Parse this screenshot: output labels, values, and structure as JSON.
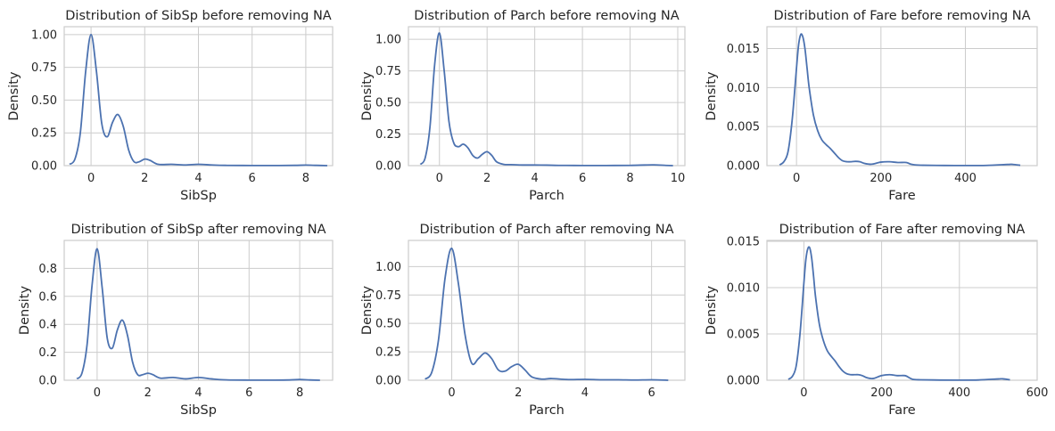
{
  "chart_data": [
    {
      "type": "line",
      "title": "Distribution of SibSp before removing NA",
      "xlabel": "SibSp",
      "ylabel": "Density",
      "xlim": [
        -1.0,
        9.0
      ],
      "ylim": [
        0,
        1.06
      ],
      "xticks": [
        0,
        2,
        4,
        6,
        8
      ],
      "xtick_labels": [
        "0",
        "2",
        "4",
        "6",
        "8"
      ],
      "yticks": [
        0,
        0.25,
        0.5,
        0.75,
        1.0
      ],
      "ytick_labels": [
        "0.00",
        "0.25",
        "0.50",
        "0.75",
        "1.00"
      ],
      "grid": true,
      "series": [
        {
          "color": "#4c72b0",
          "x": [
            -0.8,
            -0.6,
            -0.4,
            -0.2,
            0,
            0.2,
            0.4,
            0.6,
            0.8,
            1.0,
            1.2,
            1.4,
            1.6,
            1.8,
            2.0,
            2.2,
            2.5,
            3.0,
            3.5,
            4.0,
            4.5,
            5.0,
            6.0,
            7.0,
            7.6,
            8.0,
            8.4,
            8.8
          ],
          "y": [
            0.01,
            0.05,
            0.25,
            0.72,
            1.0,
            0.72,
            0.32,
            0.22,
            0.33,
            0.39,
            0.3,
            0.12,
            0.03,
            0.03,
            0.05,
            0.04,
            0.01,
            0.01,
            0.005,
            0.01,
            0.005,
            0.002,
            0.001,
            0.001,
            0.002,
            0.004,
            0.002,
            0.0
          ]
        }
      ]
    },
    {
      "type": "line",
      "title": "Distribution of Parch before removing NA",
      "xlabel": "Parch",
      "ylabel": "Density",
      "xlim": [
        -1.3,
        10.3
      ],
      "ylim": [
        0,
        1.1
      ],
      "xticks": [
        0,
        2,
        4,
        6,
        8,
        10
      ],
      "xtick_labels": [
        "0",
        "2",
        "4",
        "6",
        "8",
        "10"
      ],
      "yticks": [
        0,
        0.25,
        0.5,
        0.75,
        1.0
      ],
      "ytick_labels": [
        "0.00",
        "0.25",
        "0.50",
        "0.75",
        "1.00"
      ],
      "grid": true,
      "series": [
        {
          "color": "#4c72b0",
          "x": [
            -0.8,
            -0.6,
            -0.4,
            -0.2,
            0,
            0.2,
            0.4,
            0.6,
            0.8,
            1.0,
            1.2,
            1.4,
            1.6,
            1.8,
            2.0,
            2.2,
            2.4,
            2.7,
            3.0,
            3.5,
            4.0,
            4.5,
            5.0,
            6.0,
            7.0,
            8.0,
            8.6,
            9.0,
            9.5,
            9.8
          ],
          "y": [
            0.01,
            0.06,
            0.3,
            0.8,
            1.05,
            0.75,
            0.35,
            0.18,
            0.15,
            0.17,
            0.14,
            0.08,
            0.06,
            0.09,
            0.11,
            0.08,
            0.03,
            0.01,
            0.008,
            0.005,
            0.005,
            0.004,
            0.002,
            0.001,
            0.001,
            0.002,
            0.005,
            0.006,
            0.002,
            0.0
          ]
        }
      ]
    },
    {
      "type": "line",
      "title": "Distribution of Fare before removing NA",
      "xlabel": "Fare",
      "ylabel": "Density",
      "xlim": [
        -70,
        570
      ],
      "ylim": [
        0,
        0.0178
      ],
      "xticks": [
        0,
        200,
        400
      ],
      "xtick_labels": [
        "0",
        "200",
        "400"
      ],
      "yticks": [
        0,
        0.005,
        0.01,
        0.015
      ],
      "ytick_labels": [
        "0.000",
        "0.005",
        "0.010",
        "0.015"
      ],
      "grid": true,
      "series": [
        {
          "color": "#4c72b0",
          "x": [
            -40,
            -30,
            -20,
            -10,
            0,
            5,
            10,
            15,
            20,
            25,
            30,
            40,
            50,
            60,
            70,
            80,
            90,
            100,
            110,
            120,
            130,
            140,
            150,
            160,
            170,
            180,
            200,
            220,
            240,
            260,
            270,
            280,
            300,
            350,
            400,
            450,
            500,
            512,
            530
          ],
          "y": [
            0.0001,
            0.0005,
            0.0018,
            0.006,
            0.0125,
            0.0155,
            0.0168,
            0.0165,
            0.015,
            0.0125,
            0.01,
            0.0065,
            0.0045,
            0.0033,
            0.0027,
            0.0022,
            0.0016,
            0.001,
            0.0006,
            0.0005,
            0.0005,
            0.00055,
            0.0005,
            0.0003,
            0.0002,
            0.0002,
            0.00045,
            0.0005,
            0.0004,
            0.0004,
            0.0002,
            0.0001,
            5e-05,
            2e-05,
            1e-05,
            3e-05,
            0.00015,
            0.00016,
            5e-05
          ]
        }
      ]
    },
    {
      "type": "line",
      "title": "Distribution of SibSp after removing NA",
      "xlabel": "SibSp",
      "ylabel": "Density",
      "xlim": [
        -1.3,
        9.3
      ],
      "ylim": [
        0,
        1.0
      ],
      "xticks": [
        0,
        2,
        4,
        6,
        8
      ],
      "xtick_labels": [
        "0",
        "2",
        "4",
        "6",
        "8"
      ],
      "yticks": [
        0,
        0.2,
        0.4,
        0.6,
        0.8
      ],
      "ytick_labels": [
        "0.0",
        "0.2",
        "0.4",
        "0.6",
        "0.8"
      ],
      "grid": true,
      "series": [
        {
          "color": "#4c72b0",
          "x": [
            -0.8,
            -0.6,
            -0.4,
            -0.2,
            0,
            0.2,
            0.4,
            0.6,
            0.8,
            1.0,
            1.2,
            1.4,
            1.6,
            1.8,
            2.0,
            2.2,
            2.5,
            3.0,
            3.5,
            4.0,
            4.5,
            5.0,
            6.0,
            7.0,
            7.6,
            8.0,
            8.4,
            8.8
          ],
          "y": [
            0.01,
            0.05,
            0.25,
            0.68,
            0.94,
            0.66,
            0.3,
            0.23,
            0.36,
            0.43,
            0.32,
            0.13,
            0.04,
            0.04,
            0.05,
            0.04,
            0.015,
            0.02,
            0.01,
            0.02,
            0.01,
            0.003,
            0.001,
            0.001,
            0.002,
            0.005,
            0.002,
            0.0
          ]
        }
      ]
    },
    {
      "type": "line",
      "title": "Distribution of Parch after removing NA",
      "xlabel": "Parch",
      "ylabel": "Density",
      "xlim": [
        -1.3,
        7.0
      ],
      "ylim": [
        0,
        1.23
      ],
      "xticks": [
        0,
        2,
        4,
        6
      ],
      "xtick_labels": [
        "0",
        "2",
        "4",
        "6"
      ],
      "yticks": [
        0,
        0.25,
        0.5,
        0.75,
        1.0
      ],
      "ytick_labels": [
        "0.00",
        "0.25",
        "0.50",
        "0.75",
        "1.00"
      ],
      "grid": true,
      "series": [
        {
          "color": "#4c72b0",
          "x": [
            -0.8,
            -0.6,
            -0.4,
            -0.2,
            0,
            0.2,
            0.4,
            0.6,
            0.8,
            1.0,
            1.2,
            1.4,
            1.6,
            1.8,
            2.0,
            2.2,
            2.4,
            2.7,
            3.0,
            3.5,
            4.0,
            4.5,
            5.0,
            5.5,
            6.0,
            6.5
          ],
          "y": [
            0.01,
            0.07,
            0.35,
            0.9,
            1.16,
            0.85,
            0.4,
            0.15,
            0.19,
            0.24,
            0.19,
            0.09,
            0.08,
            0.12,
            0.14,
            0.09,
            0.03,
            0.01,
            0.015,
            0.006,
            0.008,
            0.004,
            0.004,
            0.002,
            0.004,
            0.0
          ]
        }
      ]
    },
    {
      "type": "line",
      "title": "Distribution of Fare after removing NA",
      "xlabel": "Fare",
      "ylabel": "Density",
      "xlim": [
        -95,
        600
      ],
      "ylim": [
        0,
        0.0151
      ],
      "xticks": [
        0,
        200,
        400,
        600
      ],
      "xtick_labels": [
        "0",
        "200",
        "400",
        "600"
      ],
      "yticks": [
        0,
        0.005,
        0.01,
        0.015
      ],
      "ytick_labels": [
        "0.000",
        "0.005",
        "0.010",
        "0.015"
      ],
      "grid": true,
      "series": [
        {
          "color": "#4c72b0",
          "x": [
            -40,
            -30,
            -20,
            -10,
            0,
            5,
            10,
            15,
            20,
            25,
            30,
            40,
            50,
            60,
            70,
            80,
            90,
            100,
            110,
            120,
            130,
            140,
            150,
            160,
            170,
            180,
            200,
            220,
            240,
            260,
            270,
            280,
            300,
            350,
            400,
            450,
            500,
            512,
            530
          ],
          "y": [
            0.0001,
            0.0004,
            0.0015,
            0.005,
            0.0105,
            0.013,
            0.0142,
            0.0143,
            0.0132,
            0.0112,
            0.009,
            0.006,
            0.0043,
            0.0032,
            0.0026,
            0.0021,
            0.0015,
            0.001,
            0.0007,
            0.0006,
            0.0006,
            0.0006,
            0.0005,
            0.0003,
            0.0002,
            0.0002,
            0.0005,
            0.0006,
            0.0005,
            0.0005,
            0.0003,
            0.0001,
            5e-05,
            2e-05,
            1e-05,
            3e-05,
            0.00014,
            0.00015,
            5e-05
          ]
        }
      ]
    }
  ]
}
